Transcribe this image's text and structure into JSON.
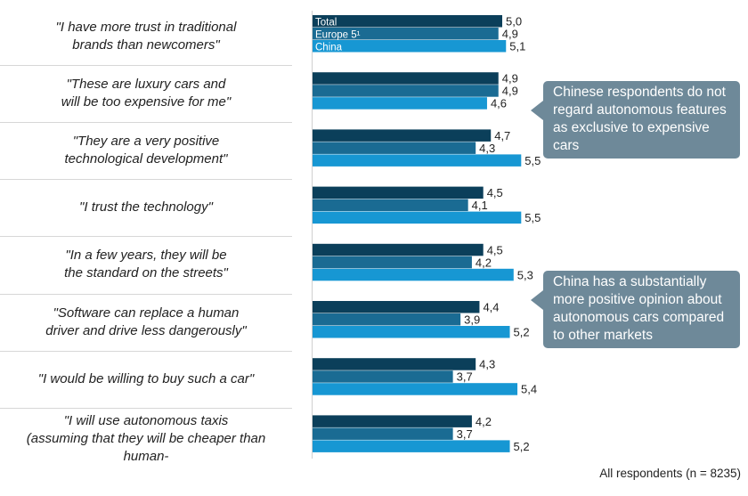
{
  "chart_data": {
    "type": "bar",
    "orientation": "horizontal",
    "categories": [
      "\"I have more trust in traditional\nbrands than newcomers\"",
      "\"These are luxury cars and\nwill be too expensive for me\"",
      "\"They are a very positive\ntechnological development\"",
      "\"I trust the technology\"",
      "\"In a few years, they will be\nthe standard on the streets\"",
      "\"Software can replace a human\ndriver and drive less dangerously\"",
      "\"I would be willing to buy such a car\"",
      "\"I will use autonomous taxis\n(assuming that they will be cheaper than\nhuman-"
    ],
    "series": [
      {
        "name": "Total",
        "color": "#0b3f5a",
        "values": [
          5.0,
          4.9,
          4.7,
          4.5,
          4.5,
          4.4,
          4.3,
          4.2
        ]
      },
      {
        "name": "Europe 5¹",
        "color": "#1a6b93",
        "values": [
          4.9,
          4.9,
          4.3,
          4.1,
          4.2,
          3.9,
          3.7,
          3.7
        ]
      },
      {
        "name": "China",
        "color": "#1797d3",
        "values": [
          5.1,
          4.6,
          5.5,
          5.5,
          5.3,
          5.2,
          5.4,
          5.2
        ]
      }
    ],
    "value_labels": [
      [
        "5,0",
        "4,9",
        "5,1"
      ],
      [
        "4,9",
        "4,9",
        "4,6"
      ],
      [
        "4,7",
        "4,3",
        "5,5"
      ],
      [
        "4,5",
        "4,1",
        "5,5"
      ],
      [
        "4,5",
        "4,2",
        "5,3"
      ],
      [
        "4,4",
        "3,9",
        "5,2"
      ],
      [
        "4,3",
        "3,7",
        "5,4"
      ],
      [
        "4,2",
        "3,7",
        "5,2"
      ]
    ],
    "legend_placement": "inside-first-group"
  },
  "callouts": [
    "Chinese respondents do not regard autonomous features as exclusive to expensive cars",
    "China has a substantially more positive opinion about autonomous cars compared to other markets"
  ],
  "footnote": "All respondents (n = 8235)"
}
